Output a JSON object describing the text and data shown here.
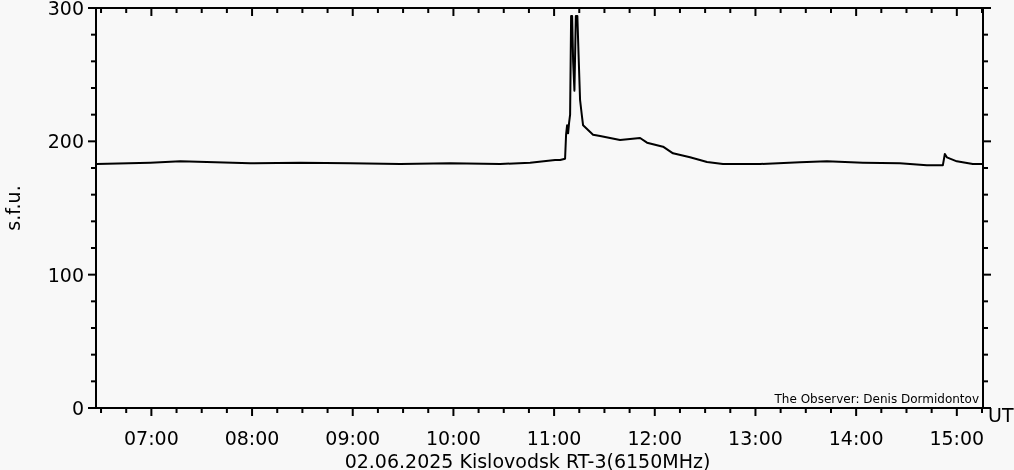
{
  "chart_data": {
    "type": "line",
    "xlabel": "02.06.2025 Kislovodsk RT-3(6150MHz)",
    "ylabel": "s.f.u.",
    "annotations": [
      "UT",
      "The Observer: Denis Dormidontov"
    ],
    "xlim": [
      6.45,
      15.26
    ],
    "ylim": [
      0,
      300
    ],
    "xticks": [
      {
        "value": 6.5,
        "label": null
      },
      {
        "value": 6.75,
        "label": null
      },
      {
        "value": 7,
        "label": "07:00"
      },
      {
        "value": 7.25,
        "label": null
      },
      {
        "value": 7.5,
        "label": null
      },
      {
        "value": 7.75,
        "label": null
      },
      {
        "value": 8,
        "label": "08:00"
      },
      {
        "value": 8.25,
        "label": null
      },
      {
        "value": 8.5,
        "label": null
      },
      {
        "value": 8.75,
        "label": null
      },
      {
        "value": 9,
        "label": "09:00"
      },
      {
        "value": 9.25,
        "label": null
      },
      {
        "value": 9.5,
        "label": null
      },
      {
        "value": 9.75,
        "label": null
      },
      {
        "value": 10,
        "label": "10:00"
      },
      {
        "value": 10.25,
        "label": null
      },
      {
        "value": 10.5,
        "label": null
      },
      {
        "value": 10.75,
        "label": null
      },
      {
        "value": 11,
        "label": "11:00"
      },
      {
        "value": 11.25,
        "label": null
      },
      {
        "value": 11.5,
        "label": null
      },
      {
        "value": 11.75,
        "label": null
      },
      {
        "value": 12,
        "label": "12:00"
      },
      {
        "value": 12.25,
        "label": null
      },
      {
        "value": 12.5,
        "label": null
      },
      {
        "value": 12.75,
        "label": null
      },
      {
        "value": 13,
        "label": "13:00"
      },
      {
        "value": 13.25,
        "label": null
      },
      {
        "value": 13.5,
        "label": null
      },
      {
        "value": 13.75,
        "label": null
      },
      {
        "value": 14,
        "label": "14:00"
      },
      {
        "value": 14.25,
        "label": null
      },
      {
        "value": 14.5,
        "label": null
      },
      {
        "value": 14.75,
        "label": null
      },
      {
        "value": 15,
        "label": "15:00"
      },
      {
        "value": 15.25,
        "label": null
      }
    ],
    "yticks": [
      0,
      {
        "value": 20,
        "label": null
      },
      {
        "value": 40,
        "label": null
      },
      {
        "value": 60,
        "label": null
      },
      {
        "value": 80,
        "label": null
      },
      100,
      {
        "value": 120,
        "label": null
      },
      {
        "value": 140,
        "label": null
      },
      {
        "value": 160,
        "label": null
      },
      {
        "value": 180,
        "label": null
      },
      200,
      {
        "value": 220,
        "label": null
      },
      {
        "value": 240,
        "label": null
      },
      {
        "value": 260,
        "label": null
      },
      {
        "value": 280,
        "label": null
      },
      300
    ],
    "grid": false,
    "marker": "none",
    "line_style": "solid",
    "series": [
      {
        "color": "#000000",
        "x": [
          6.454,
          6.99,
          7.288,
          7.983,
          8.479,
          8.975,
          9.471,
          9.968,
          10.464,
          10.762,
          11.01,
          11.06,
          11.109,
          11.119,
          11.129,
          11.139,
          11.149,
          11.159,
          11.169,
          11.179,
          11.189,
          11.202,
          11.216,
          11.231,
          11.243,
          11.258,
          11.278,
          11.288,
          11.387,
          11.457,
          11.655,
          11.854,
          11.923,
          12.082,
          12.181,
          12.35,
          12.519,
          12.677,
          13.045,
          13.442,
          13.71,
          14.067,
          14.434,
          14.702,
          14.861,
          14.881,
          14.901,
          15.0,
          15.159,
          15.258
        ],
        "values": [
          183,
          184,
          185,
          183.5,
          184,
          183.5,
          183,
          183.5,
          183,
          184,
          186,
          186,
          187,
          205,
          212,
          206,
          214,
          220,
          294,
          294,
          260,
          238,
          294,
          294,
          265,
          231,
          218,
          212,
          205,
          204,
          201,
          202.5,
          199,
          196,
          191,
          188,
          184.5,
          183,
          183,
          184.3,
          185,
          184,
          183.5,
          182,
          182,
          190.5,
          188,
          185,
          183,
          183
        ]
      }
    ]
  }
}
